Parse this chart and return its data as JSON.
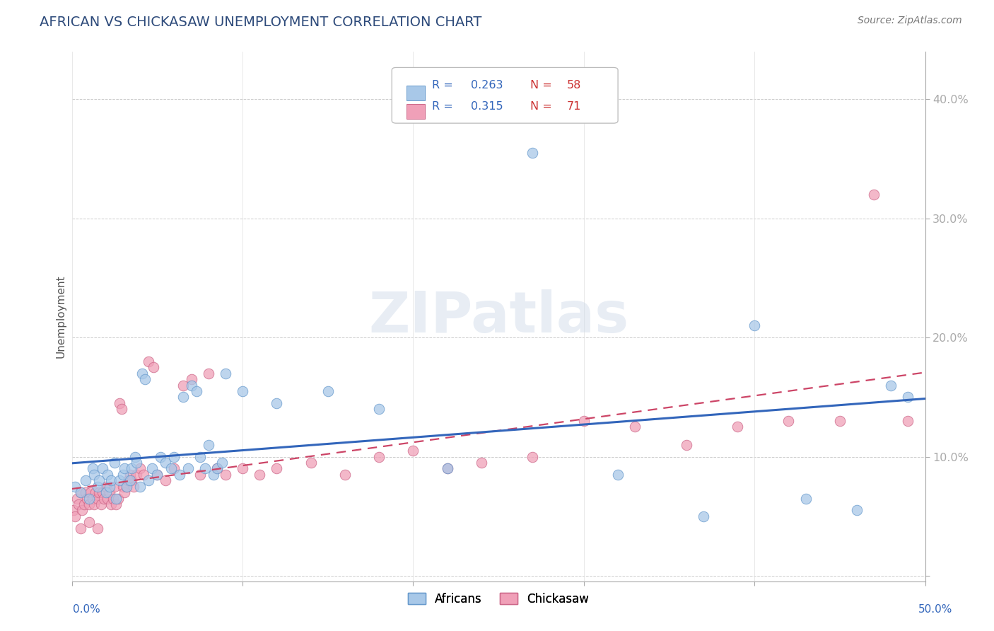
{
  "title": "AFRICAN VS CHICKASAW UNEMPLOYMENT CORRELATION CHART",
  "source": "Source: ZipAtlas.com",
  "ylabel": "Unemployment",
  "xlim": [
    0.0,
    0.5
  ],
  "ylim": [
    -0.005,
    0.44
  ],
  "yticks": [
    0.0,
    0.1,
    0.2,
    0.3,
    0.4
  ],
  "ytick_labels": [
    "",
    "10.0%",
    "20.0%",
    "30.0%",
    "40.0%"
  ],
  "title_color": "#2d4a7a",
  "title_fontsize": 14,
  "source_fontsize": 10,
  "source_color": "#777777",
  "grid_color": "#cccccc",
  "africans_color": "#a8c8e8",
  "africans_edge": "#6699cc",
  "chickasaw_color": "#f0a0b8",
  "chickasaw_edge": "#cc6688",
  "africans_line_color": "#3366bb",
  "chickasaw_line_color": "#cc4466",
  "legend_R_color": "#3366bb",
  "legend_N_color": "#cc3333",
  "africans_R": 0.263,
  "africans_N": 58,
  "chickasaw_R": 0.315,
  "chickasaw_N": 71,
  "africans_x": [
    0.002,
    0.005,
    0.008,
    0.01,
    0.012,
    0.013,
    0.015,
    0.016,
    0.018,
    0.02,
    0.021,
    0.022,
    0.023,
    0.025,
    0.026,
    0.028,
    0.03,
    0.031,
    0.032,
    0.034,
    0.035,
    0.037,
    0.038,
    0.04,
    0.041,
    0.043,
    0.045,
    0.047,
    0.05,
    0.052,
    0.055,
    0.058,
    0.06,
    0.063,
    0.065,
    0.068,
    0.07,
    0.073,
    0.075,
    0.078,
    0.08,
    0.083,
    0.085,
    0.088,
    0.09,
    0.1,
    0.12,
    0.15,
    0.18,
    0.22,
    0.27,
    0.32,
    0.37,
    0.4,
    0.43,
    0.46,
    0.48,
    0.49
  ],
  "africans_y": [
    0.075,
    0.07,
    0.08,
    0.065,
    0.09,
    0.085,
    0.075,
    0.08,
    0.09,
    0.07,
    0.085,
    0.075,
    0.08,
    0.095,
    0.065,
    0.08,
    0.085,
    0.09,
    0.075,
    0.08,
    0.09,
    0.1,
    0.095,
    0.075,
    0.17,
    0.165,
    0.08,
    0.09,
    0.085,
    0.1,
    0.095,
    0.09,
    0.1,
    0.085,
    0.15,
    0.09,
    0.16,
    0.155,
    0.1,
    0.09,
    0.11,
    0.085,
    0.09,
    0.095,
    0.17,
    0.155,
    0.145,
    0.155,
    0.14,
    0.09,
    0.355,
    0.085,
    0.05,
    0.21,
    0.065,
    0.055,
    0.16,
    0.15
  ],
  "chickasaw_x": [
    0.001,
    0.002,
    0.003,
    0.004,
    0.005,
    0.006,
    0.007,
    0.008,
    0.009,
    0.01,
    0.011,
    0.012,
    0.013,
    0.014,
    0.015,
    0.016,
    0.017,
    0.018,
    0.019,
    0.02,
    0.021,
    0.022,
    0.023,
    0.024,
    0.025,
    0.026,
    0.027,
    0.028,
    0.029,
    0.03,
    0.031,
    0.032,
    0.033,
    0.034,
    0.035,
    0.036,
    0.038,
    0.04,
    0.042,
    0.045,
    0.048,
    0.05,
    0.055,
    0.06,
    0.065,
    0.07,
    0.075,
    0.08,
    0.085,
    0.09,
    0.1,
    0.11,
    0.12,
    0.14,
    0.16,
    0.18,
    0.2,
    0.22,
    0.24,
    0.27,
    0.3,
    0.33,
    0.36,
    0.39,
    0.42,
    0.45,
    0.47,
    0.49,
    0.005,
    0.01,
    0.015
  ],
  "chickasaw_y": [
    0.055,
    0.05,
    0.065,
    0.06,
    0.07,
    0.055,
    0.06,
    0.07,
    0.065,
    0.06,
    0.07,
    0.065,
    0.06,
    0.07,
    0.065,
    0.07,
    0.06,
    0.07,
    0.065,
    0.075,
    0.065,
    0.07,
    0.06,
    0.065,
    0.075,
    0.06,
    0.065,
    0.145,
    0.14,
    0.075,
    0.07,
    0.075,
    0.08,
    0.085,
    0.08,
    0.075,
    0.085,
    0.09,
    0.085,
    0.18,
    0.175,
    0.085,
    0.08,
    0.09,
    0.16,
    0.165,
    0.085,
    0.17,
    0.09,
    0.085,
    0.09,
    0.085,
    0.09,
    0.095,
    0.085,
    0.1,
    0.105,
    0.09,
    0.095,
    0.1,
    0.13,
    0.125,
    0.11,
    0.125,
    0.13,
    0.13,
    0.32,
    0.13,
    0.04,
    0.045,
    0.04
  ]
}
